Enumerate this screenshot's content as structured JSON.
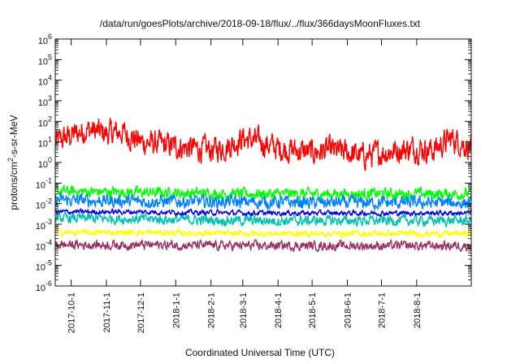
{
  "chart_data": {
    "type": "line",
    "title": "/data/run/goesPlots/archive/2018-09-18/flux/../flux/366daysMoonFluxes.txt",
    "xlabel": "Coordinated Universal Time (UTC)",
    "ylabel": {
      "prefix": "protons/cm",
      "superscript": "2",
      "suffix": "-s-sr-MeV"
    },
    "yscale": "log",
    "ylim": [
      1e-06,
      1000000.0
    ],
    "y_ticks": [
      {
        "base": "10",
        "exp": "-6"
      },
      {
        "base": "10",
        "exp": "-5"
      },
      {
        "base": "10",
        "exp": "-4"
      },
      {
        "base": "10",
        "exp": "-3"
      },
      {
        "base": "10",
        "exp": "-2"
      },
      {
        "base": "10",
        "exp": "-1"
      },
      {
        "base": "10",
        "exp": "0"
      },
      {
        "base": "10",
        "exp": "1"
      },
      {
        "base": "10",
        "exp": "2"
      },
      {
        "base": "10",
        "exp": "3"
      },
      {
        "base": "10",
        "exp": "4"
      },
      {
        "base": "10",
        "exp": "5"
      },
      {
        "base": "10",
        "exp": "6"
      }
    ],
    "xlim": [
      "2017-09-17",
      "2018-09-18"
    ],
    "x_ticks": [
      "2017-10-1",
      "2017-11-1",
      "2017-12-1",
      "2018-1-1",
      "2018-2-1",
      "2018-3-1",
      "2018-4-1",
      "2018-5-1",
      "2018-6-1",
      "2018-7-1",
      "2018-8-1"
    ],
    "grid": false,
    "series": [
      {
        "color": "#ff0000",
        "x": [
          "2017-09-17",
          "2017-10-01",
          "2017-10-15",
          "2017-11-01",
          "2017-11-15",
          "2017-12-01",
          "2017-12-15",
          "2018-01-01",
          "2018-01-15",
          "2018-02-01",
          "2018-02-15",
          "2018-03-01",
          "2018-03-15",
          "2018-04-01",
          "2018-04-15",
          "2018-05-01",
          "2018-05-15",
          "2018-06-01",
          "2018-06-15",
          "2018-07-01",
          "2018-07-15",
          "2018-08-01",
          "2018-08-15",
          "2018-09-01",
          "2018-09-18"
        ],
        "y": [
          10,
          20,
          40,
          25,
          30,
          10,
          8,
          6,
          5,
          4,
          6,
          15,
          10,
          5,
          4,
          3,
          4,
          3,
          2,
          3,
          4,
          5,
          4,
          15,
          5
        ],
        "spread": 0.5
      },
      {
        "color": "#00ff00",
        "x": [
          "2017-09-17",
          "2017-12-01",
          "2018-03-01",
          "2018-06-01",
          "2018-09-18"
        ],
        "y": [
          0.04,
          0.035,
          0.03,
          0.03,
          0.03
        ],
        "spread": 0.22
      },
      {
        "color": "#0080ff",
        "x": [
          "2017-09-17",
          "2017-12-01",
          "2018-03-01",
          "2018-06-01",
          "2018-09-18"
        ],
        "y": [
          0.015,
          0.013,
          0.012,
          0.011,
          0.011
        ],
        "spread": 0.25
      },
      {
        "color": "#00c0b0",
        "x": [
          "2017-09-17",
          "2017-12-01",
          "2018-03-01",
          "2018-06-01",
          "2018-09-18"
        ],
        "y": [
          0.002,
          0.0018,
          0.0015,
          0.0015,
          0.0015
        ],
        "spread": 0.2
      },
      {
        "color": "#0000e0",
        "x": [
          "2017-09-17",
          "2017-12-01",
          "2018-03-01",
          "2018-06-01",
          "2018-09-18"
        ],
        "y": [
          0.004,
          0.004,
          0.0035,
          0.0035,
          0.0035
        ],
        "spread": 0.1
      },
      {
        "color": "#ffff00",
        "x": [
          "2017-09-17",
          "2017-12-01",
          "2018-03-01",
          "2018-06-01",
          "2018-09-18"
        ],
        "y": [
          0.0004,
          0.0004,
          0.00035,
          0.00035,
          0.00035
        ],
        "spread": 0.12
      },
      {
        "color": "#993366",
        "x": [
          "2017-09-17",
          "2017-12-01",
          "2018-03-01",
          "2018-06-01",
          "2018-09-18"
        ],
        "y": [
          0.0001,
          0.0001,
          9e-05,
          9e-05,
          9e-05
        ],
        "spread": 0.18
      }
    ]
  }
}
